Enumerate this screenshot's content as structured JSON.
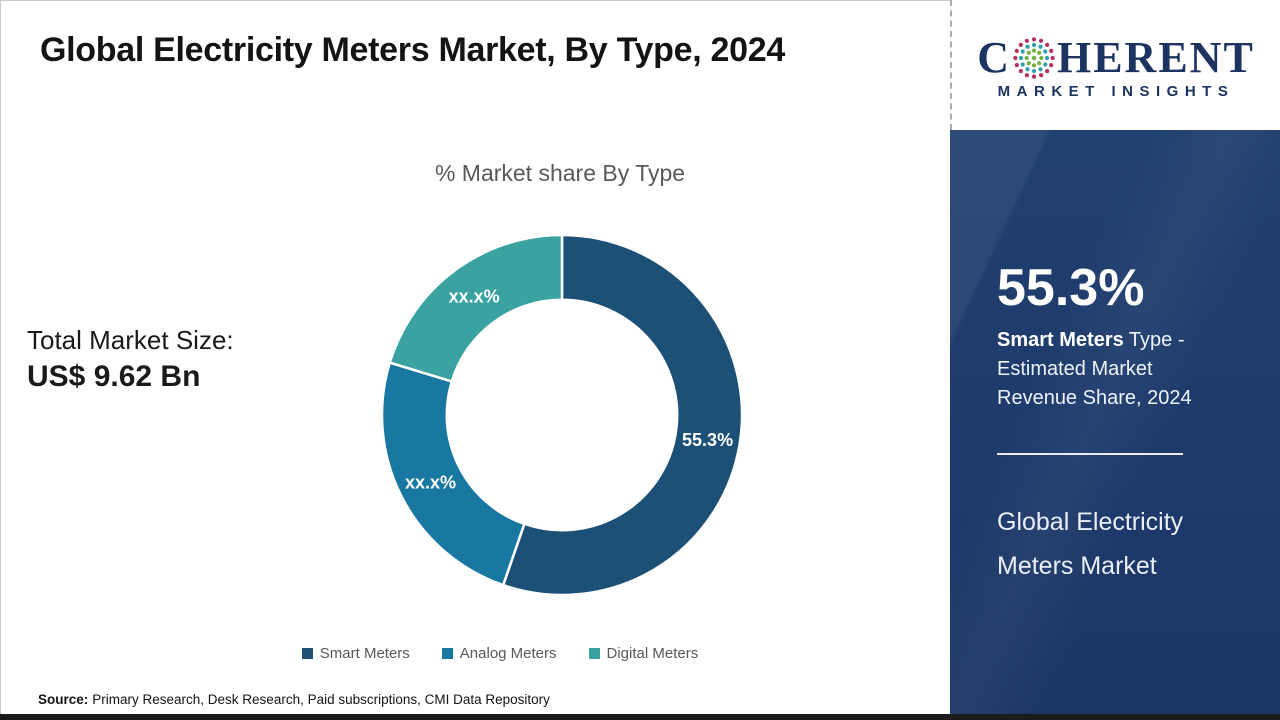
{
  "page": {
    "title": "Global Electricity Meters Market, By Type, 2024"
  },
  "logo": {
    "brand_prefix": "C",
    "brand_suffix": "HERENT",
    "subtitle": "MARKET INSIGHTS",
    "globe_colors": [
      "#b13061",
      "#2f9fae",
      "#76b043"
    ],
    "brand_color": "#1d3461"
  },
  "stats_left": {
    "label": "Total Market Size:",
    "value": "US$ 9.62 Bn"
  },
  "chart_data": {
    "type": "pie",
    "subtype": "donut",
    "title": "% Market share By Type",
    "start_angle_deg": 0,
    "direction": "clockwise",
    "hole_ratio": 0.64,
    "legend_position": "bottom",
    "segments": [
      {
        "name": "Smart Meters",
        "label": "55.3%",
        "value": 55.3,
        "color": "#1d5077"
      },
      {
        "name": "Analog Meters",
        "label": "xx.x%",
        "value": 24.4,
        "color": "#1878a2"
      },
      {
        "name": "Digital Meters",
        "label": "xx.x%",
        "value": 20.3,
        "color": "#3aa2a0"
      }
    ]
  },
  "sidebar": {
    "stat_value": "55.3%",
    "stat_desc_bold": "Smart Meters",
    "stat_desc_line1_rest": " Type -",
    "stat_desc_line2": "Estimated Market",
    "stat_desc_line3": "Revenue Share, 2024",
    "product_line1": "Global Electricity",
    "product_line2": "Meters Market",
    "bg_color": "#1e3a6b"
  },
  "source": {
    "label": "Source:",
    "text": "Primary Research, Desk Research, Paid subscriptions, CMI Data Repository"
  }
}
